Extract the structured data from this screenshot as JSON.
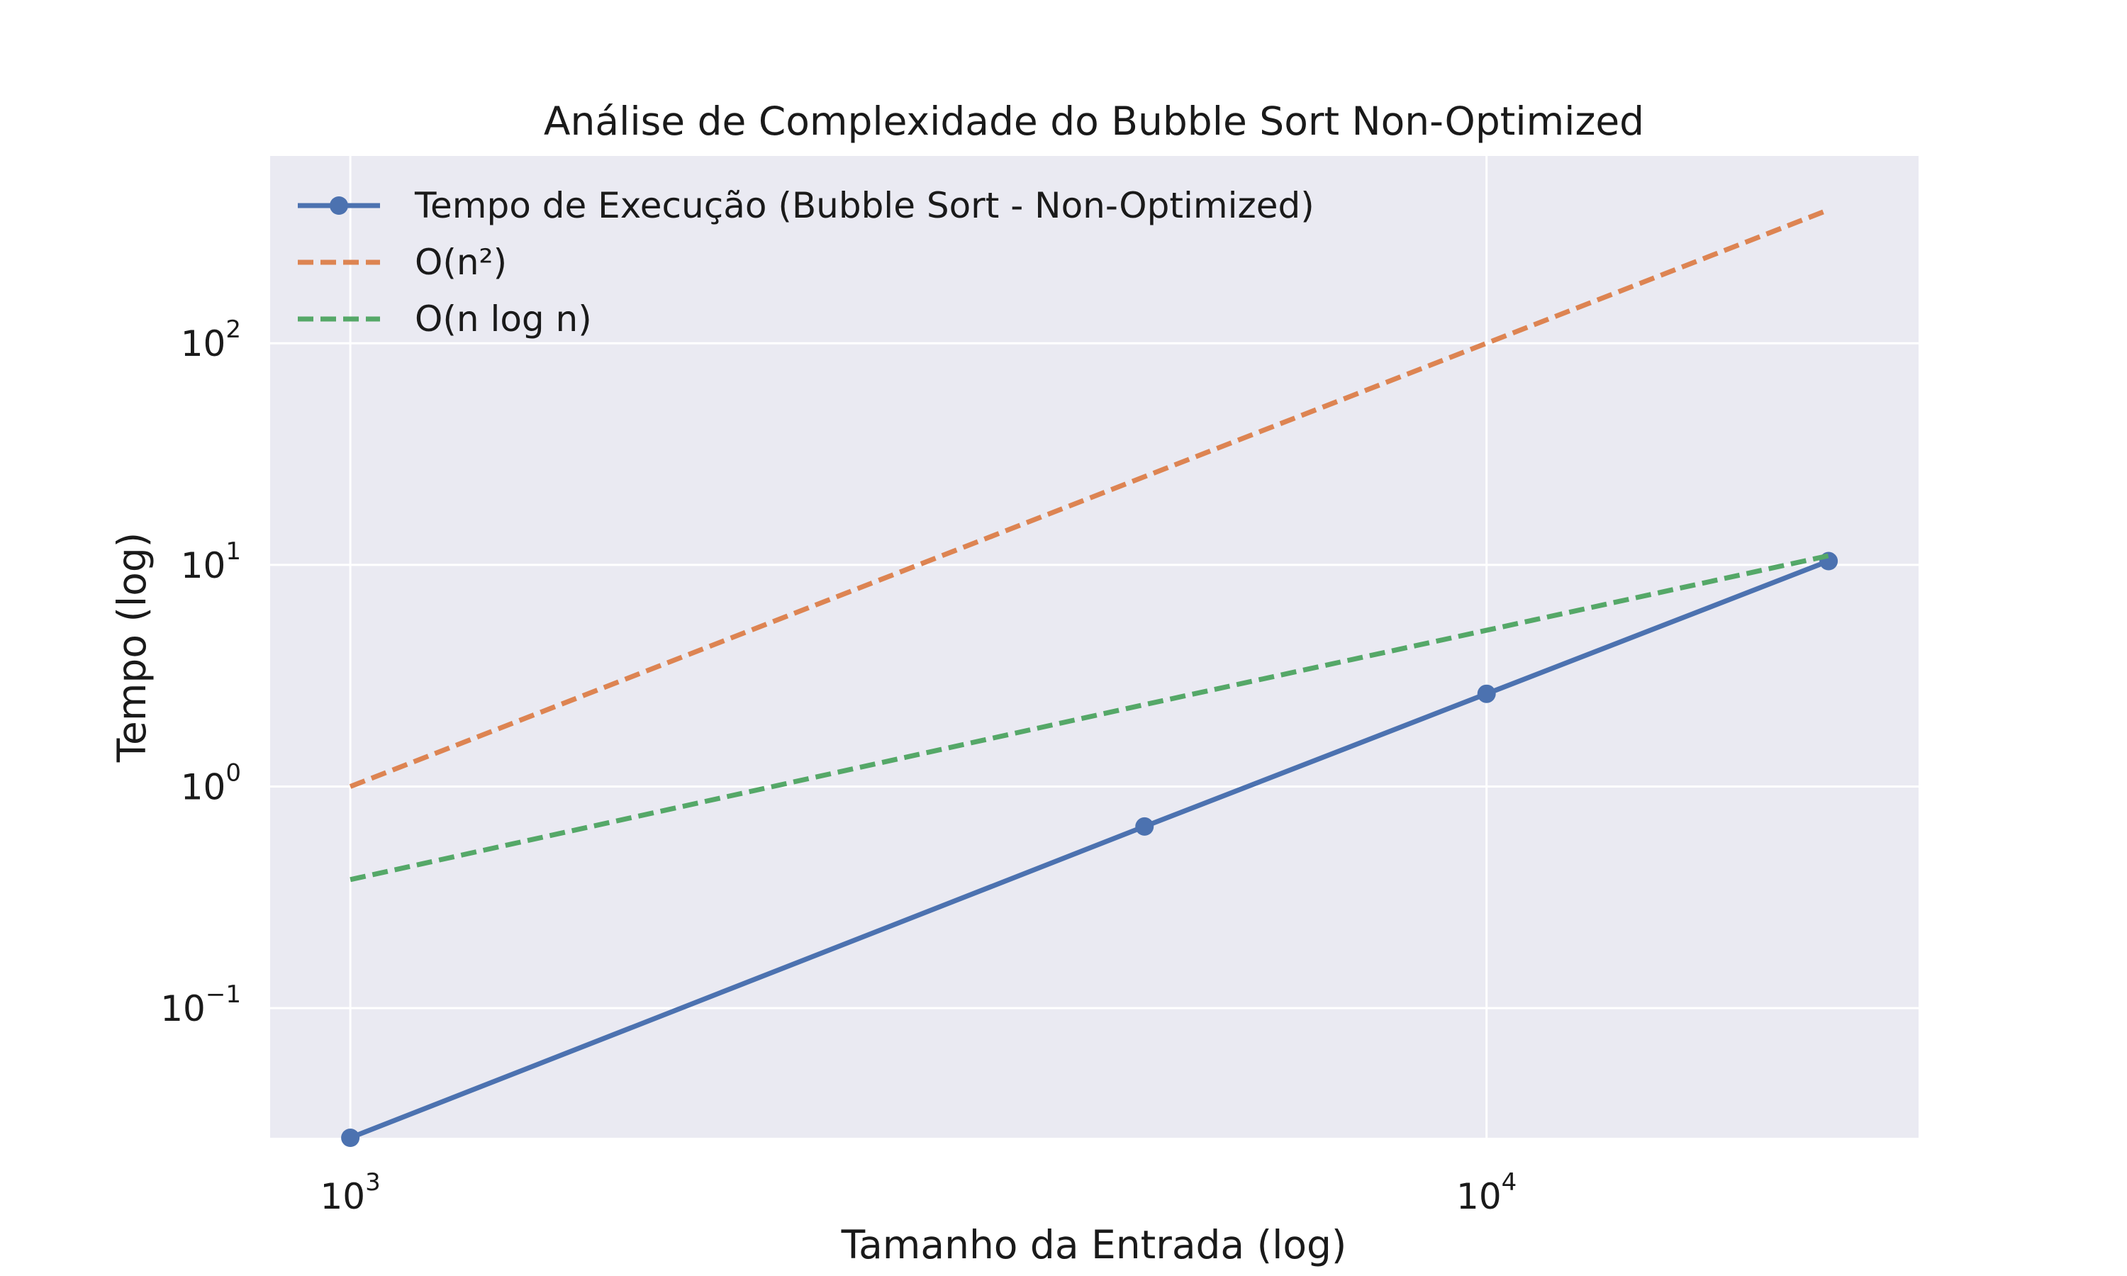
{
  "chart_data": {
    "type": "line",
    "title": "Análise de Complexidade do Bubble Sort Non-Optimized",
    "xlabel": "Tamanho da Entrada (log)",
    "ylabel": "Tempo (log)",
    "xscale": "log",
    "yscale": "log",
    "xlim": [
      850,
      24000
    ],
    "ylim": [
      0.026,
      700
    ],
    "grid": true,
    "background": "#eaeaf2",
    "legend_position": "top-left",
    "x_ticks": [
      {
        "value": 1000,
        "base": "10",
        "exp": "3"
      },
      {
        "value": 10000,
        "base": "10",
        "exp": "4"
      }
    ],
    "y_ticks": [
      {
        "value": 0.1,
        "base": "10",
        "exp": "−1"
      },
      {
        "value": 1,
        "base": "10",
        "exp": "0"
      },
      {
        "value": 10,
        "base": "10",
        "exp": "1"
      },
      {
        "value": 100,
        "base": "10",
        "exp": "2"
      }
    ],
    "series": [
      {
        "name": "Tempo de Execução (Bubble Sort - Non-Optimized)",
        "style": "solid",
        "marker": "circle",
        "color": "#4c72b0",
        "x": [
          1000,
          5000,
          10000,
          20000
        ],
        "y": [
          0.026,
          0.66,
          2.62,
          10.4
        ]
      },
      {
        "name": "O(n²)",
        "style": "dashed",
        "marker": "none",
        "color": "#dd8452",
        "x": [
          1000,
          5000,
          10000,
          20000
        ],
        "y": [
          1,
          25,
          100,
          400
        ]
      },
      {
        "name": "O(n log n)",
        "style": "dashed",
        "marker": "none",
        "color": "#55a868",
        "x": [
          1000,
          5000,
          10000,
          20000
        ],
        "y": [
          0.38,
          2.34,
          5.07,
          11.0
        ]
      }
    ]
  }
}
